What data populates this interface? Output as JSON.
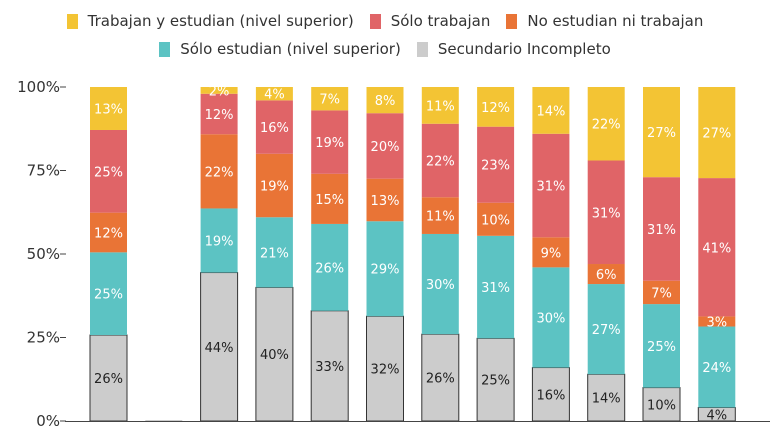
{
  "chart_data": {
    "type": "bar",
    "stacked": true,
    "normalized": true,
    "title": "",
    "xlabel": "",
    "ylabel": "",
    "ylim": [
      0,
      100
    ],
    "y_ticks": [
      "0%",
      "25%",
      "50%",
      "75%",
      "100%"
    ],
    "grid": false,
    "legend_position": "top",
    "categories": [
      "",
      "",
      "",
      "",
      "",
      "",
      "",
      "",
      "",
      "",
      "",
      ""
    ],
    "series": [
      {
        "name": "Secundario Incompleto",
        "color": "#cccccc",
        "values": [
          26,
          0,
          44,
          40,
          33,
          32,
          26,
          25,
          16,
          14,
          10,
          4
        ]
      },
      {
        "name": "Sólo estudian (nivel superior)",
        "color": "#5cc3c3",
        "values": [
          25,
          0,
          19,
          21,
          26,
          29,
          30,
          31,
          30,
          27,
          25,
          24
        ]
      },
      {
        "name": "No estudian ni trabajan",
        "color": "#e97436",
        "values": [
          12,
          0,
          22,
          19,
          15,
          13,
          11,
          10,
          9,
          6,
          7,
          3
        ]
      },
      {
        "name": "Sólo trabajan",
        "color": "#e06467",
        "values": [
          25,
          0,
          12,
          16,
          19,
          20,
          22,
          23,
          31,
          31,
          31,
          41
        ]
      },
      {
        "name": "Trabajan y estudian (nivel superior)",
        "color": "#f3c434",
        "values": [
          13,
          0,
          2,
          4,
          7,
          8,
          11,
          12,
          14,
          22,
          27,
          27
        ]
      }
    ],
    "legend_order_row1": [
      4,
      3,
      2
    ],
    "legend_order_row2": [
      1,
      0
    ]
  }
}
